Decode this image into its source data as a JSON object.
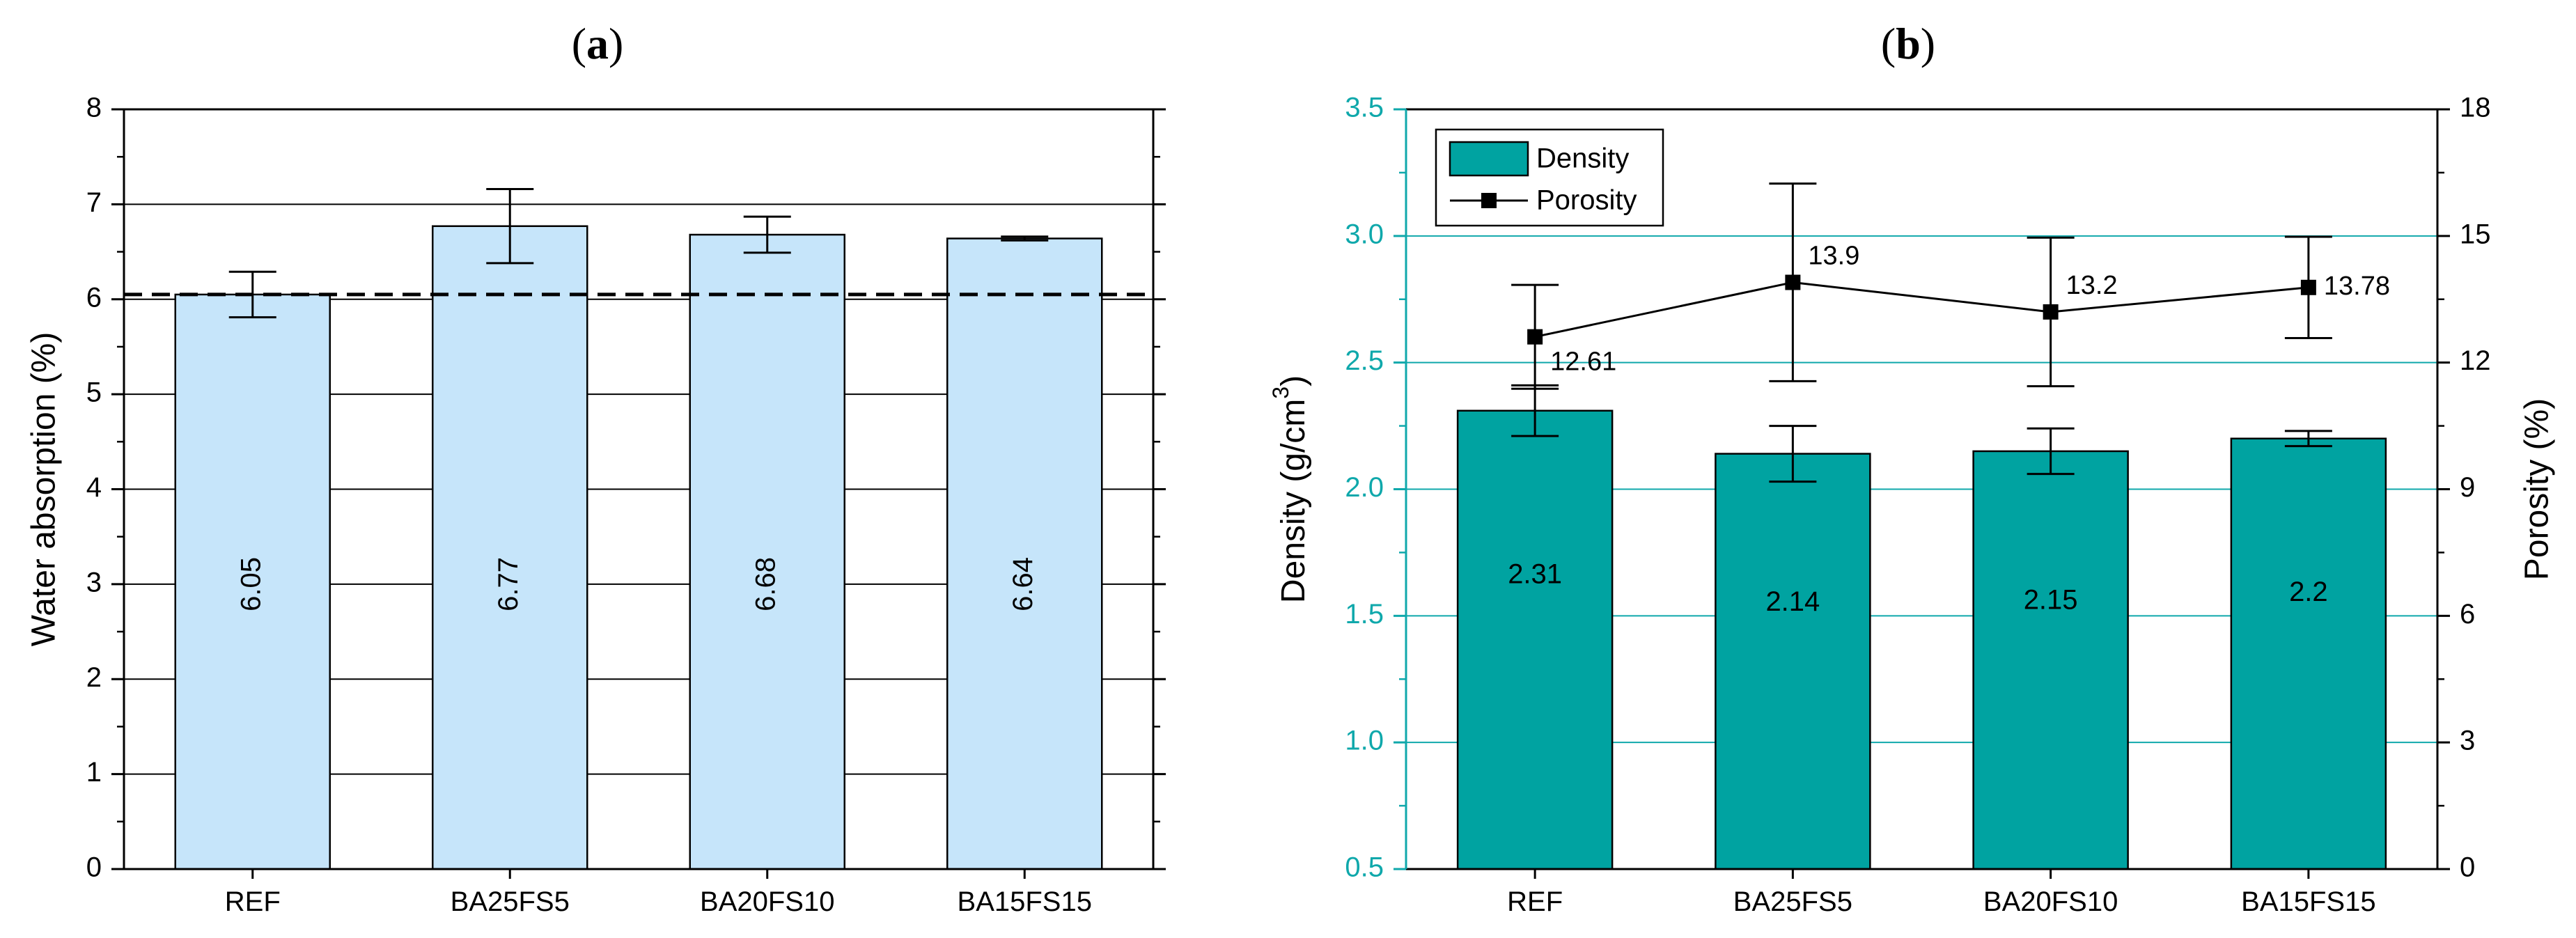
{
  "chart_data": [
    {
      "panel": "a",
      "type": "bar",
      "title": "",
      "categories": [
        "REF",
        "BA25FS5",
        "BA20FS10",
        "BA15FS15"
      ],
      "xlabel": "",
      "ylabel": "Water absorption (%)",
      "ylim": [
        0,
        8
      ],
      "yticks": [
        0,
        1,
        2,
        3,
        4,
        5,
        6,
        7,
        8
      ],
      "grid": true,
      "series": [
        {
          "name": "Water absorption",
          "values": [
            6.05,
            6.77,
            6.68,
            6.64
          ],
          "errors": [
            0.24,
            0.39,
            0.19,
            0.02
          ],
          "labels": [
            "6.05",
            "6.77",
            "6.68",
            "6.64"
          ]
        }
      ],
      "reference_line": 6.05,
      "colors": {
        "bar": "#c6e5fa",
        "edge": "#000000",
        "axis": "#000000"
      }
    },
    {
      "panel": "b",
      "type": "bar",
      "title": "",
      "categories": [
        "REF",
        "BA25FS5",
        "BA20FS10",
        "BA15FS15"
      ],
      "xlabel": "",
      "ylabel_left": "Density (g/cm",
      "ylabel_left_sup": "3",
      "ylabel_left_end": ")",
      "ylabel_right": "Porosity (%)",
      "ylim_left": [
        0.5,
        3.5
      ],
      "yticks_left": [
        "0.5",
        "1.0",
        "1.5",
        "2.0",
        "2.5",
        "3.0",
        "3.5"
      ],
      "ylim_right": [
        0,
        18
      ],
      "yticks_right": [
        "0",
        "3",
        "6",
        "9",
        "12",
        "15",
        "18"
      ],
      "grid": true,
      "legend": "top-left",
      "series": [
        {
          "name": "Density",
          "type": "bar",
          "axis": "left",
          "values": [
            2.31,
            2.14,
            2.15,
            2.2
          ],
          "errors": [
            0.1,
            0.11,
            0.09,
            0.03
          ],
          "labels": [
            "2.31",
            "2.14",
            "2.15",
            "2.2"
          ]
        },
        {
          "name": "Porosity",
          "type": "line",
          "axis": "right",
          "values": [
            12.61,
            13.9,
            13.2,
            13.78
          ],
          "errors": [
            1.23,
            2.34,
            1.76,
            1.2
          ],
          "labels": [
            "12.61",
            "13.9",
            "13.2",
            "13.78"
          ]
        }
      ],
      "colors": {
        "bar": "#00a3a1",
        "edge": "#000000",
        "axis": "#0fa8ab",
        "line": "#000000"
      }
    }
  ],
  "panel_labels": {
    "a": "a",
    "b": "b"
  }
}
